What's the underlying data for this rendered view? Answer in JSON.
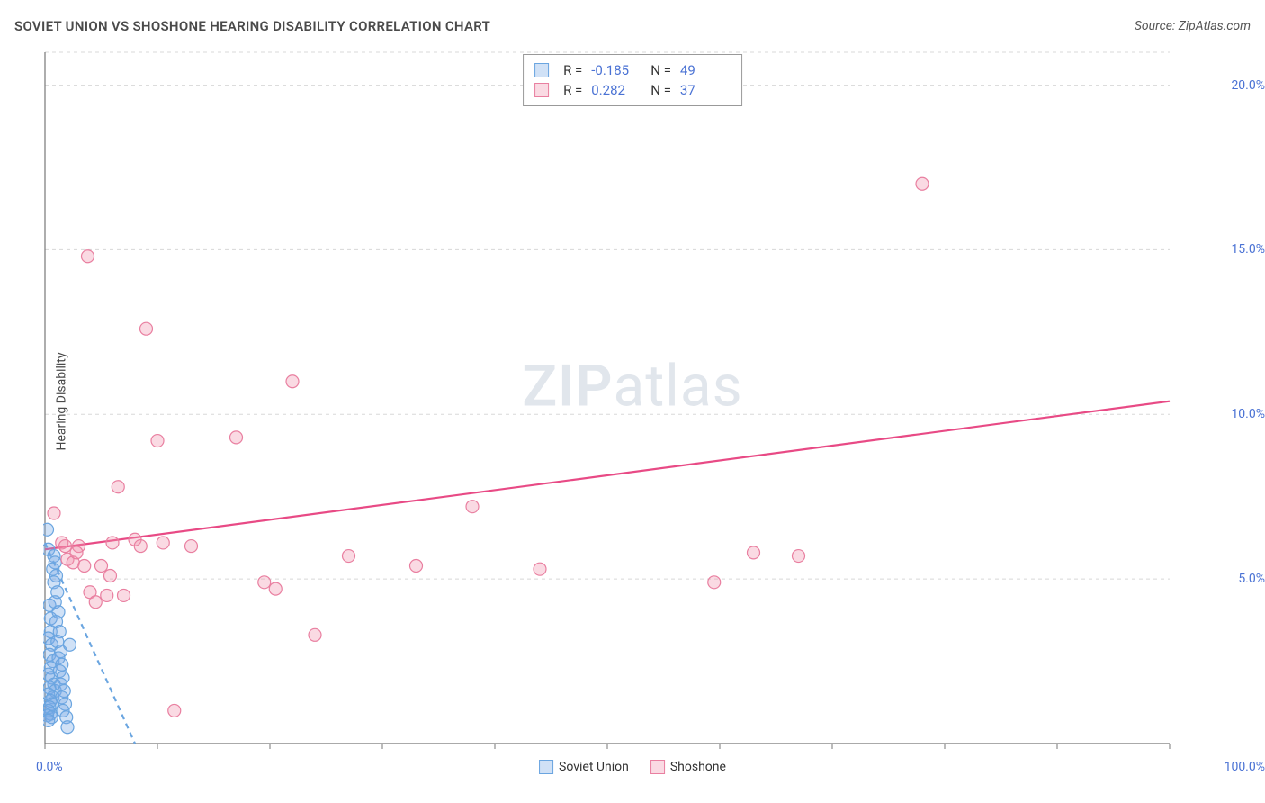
{
  "header": {
    "title": "SOVIET UNION VS SHOSHONE HEARING DISABILITY CORRELATION CHART",
    "source": "Source: ZipAtlas.com"
  },
  "watermark": {
    "bold": "ZIP",
    "light": "atlas"
  },
  "chart": {
    "type": "scatter",
    "ylabel": "Hearing Disability",
    "background_color": "#ffffff",
    "grid_color": "#d8d8d8",
    "grid_dash": "4 4",
    "axis_color": "#777777",
    "tick_color": "#777777",
    "label_color": "#4a72d4",
    "xlim": [
      0,
      100
    ],
    "ylim": [
      0,
      21
    ],
    "xtick_positions": [
      0,
      10,
      20,
      30,
      40,
      50,
      60,
      70,
      80,
      90,
      100
    ],
    "xtick_labels_shown": {
      "0": "0.0%",
      "100": "100.0%"
    },
    "ytick_positions": [
      5,
      10,
      15,
      20
    ],
    "ytick_labels": {
      "5": "5.0%",
      "10": "10.0%",
      "15": "15.0%",
      "20": "20.0%"
    },
    "marker_radius": 7,
    "marker_stroke_width": 1.2,
    "trendline_width": 2.2,
    "series": [
      {
        "name": "Soviet Union",
        "fill_color": "rgba(120,170,230,0.35)",
        "stroke_color": "#6aa5e0",
        "trendline_color": "#6aa5e0",
        "trendline_dash": "6 5",
        "trend_start": [
          0,
          6.1
        ],
        "trend_end": [
          8,
          0
        ],
        "points": [
          [
            0.2,
            6.5
          ],
          [
            0.3,
            5.9
          ],
          [
            0.4,
            4.2
          ],
          [
            0.5,
            3.8
          ],
          [
            0.5,
            3.4
          ],
          [
            0.3,
            3.2
          ],
          [
            0.6,
            3.0
          ],
          [
            0.4,
            2.7
          ],
          [
            0.7,
            2.5
          ],
          [
            0.5,
            2.3
          ],
          [
            0.3,
            2.1
          ],
          [
            0.6,
            2.0
          ],
          [
            0.8,
            1.8
          ],
          [
            0.4,
            1.7
          ],
          [
            0.9,
            1.6
          ],
          [
            0.3,
            1.5
          ],
          [
            0.7,
            1.4
          ],
          [
            0.5,
            1.3
          ],
          [
            0.6,
            1.2
          ],
          [
            0.4,
            1.1
          ],
          [
            0.3,
            1.0
          ],
          [
            0.5,
            0.9
          ],
          [
            0.2,
            0.85
          ],
          [
            0.6,
            0.8
          ],
          [
            0.3,
            0.7
          ],
          [
            0.8,
            5.7
          ],
          [
            0.9,
            5.5
          ],
          [
            0.7,
            5.3
          ],
          [
            1.0,
            5.1
          ],
          [
            0.8,
            4.9
          ],
          [
            1.1,
            4.6
          ],
          [
            0.9,
            4.3
          ],
          [
            1.2,
            4.0
          ],
          [
            1.0,
            3.7
          ],
          [
            1.3,
            3.4
          ],
          [
            1.1,
            3.1
          ],
          [
            1.4,
            2.8
          ],
          [
            1.2,
            2.6
          ],
          [
            1.5,
            2.4
          ],
          [
            1.3,
            2.2
          ],
          [
            1.6,
            2.0
          ],
          [
            1.4,
            1.8
          ],
          [
            1.7,
            1.6
          ],
          [
            1.5,
            1.4
          ],
          [
            1.8,
            1.2
          ],
          [
            1.6,
            1.0
          ],
          [
            1.9,
            0.8
          ],
          [
            2.2,
            3.0
          ],
          [
            2.0,
            0.5
          ]
        ]
      },
      {
        "name": "Shoshone",
        "fill_color": "rgba(240,150,175,0.35)",
        "stroke_color": "#e97fa0",
        "trendline_color": "#e84a85",
        "trendline_dash": "none",
        "trend_start": [
          0,
          5.9
        ],
        "trend_end": [
          100,
          10.4
        ],
        "points": [
          [
            0.8,
            7.0
          ],
          [
            1.5,
            6.1
          ],
          [
            1.8,
            6.0
          ],
          [
            2.0,
            5.6
          ],
          [
            2.5,
            5.5
          ],
          [
            3.0,
            6.0
          ],
          [
            3.5,
            5.4
          ],
          [
            4.0,
            4.6
          ],
          [
            4.5,
            4.3
          ],
          [
            5.0,
            5.4
          ],
          [
            5.5,
            4.5
          ],
          [
            6.0,
            6.1
          ],
          [
            6.5,
            7.8
          ],
          [
            7.0,
            4.5
          ],
          [
            8.0,
            6.2
          ],
          [
            8.5,
            6.0
          ],
          [
            9.0,
            12.6
          ],
          [
            10.0,
            9.2
          ],
          [
            10.5,
            6.1
          ],
          [
            11.5,
            1.0
          ],
          [
            13.0,
            6.0
          ],
          [
            17.0,
            9.3
          ],
          [
            19.5,
            4.9
          ],
          [
            20.5,
            4.7
          ],
          [
            22.0,
            11.0
          ],
          [
            24.0,
            3.3
          ],
          [
            27.0,
            5.7
          ],
          [
            33.0,
            5.4
          ],
          [
            38.0,
            7.2
          ],
          [
            44.0,
            5.3
          ],
          [
            59.5,
            4.9
          ],
          [
            63.0,
            5.8
          ],
          [
            67.0,
            5.7
          ],
          [
            78.0,
            17.0
          ],
          [
            3.8,
            14.8
          ],
          [
            2.8,
            5.8
          ],
          [
            5.8,
            5.1
          ]
        ]
      }
    ],
    "top_legend": {
      "rows": [
        {
          "swatch_series": 0,
          "r_label": "R =",
          "r_value": "-0.185",
          "n_label": "N =",
          "n_value": "49"
        },
        {
          "swatch_series": 1,
          "r_label": "R =",
          "r_value": "0.282",
          "n_label": "N =",
          "n_value": "37"
        }
      ]
    },
    "bottom_legend": [
      {
        "series": 0,
        "label": "Soviet Union"
      },
      {
        "series": 1,
        "label": "Shoshone"
      }
    ]
  }
}
